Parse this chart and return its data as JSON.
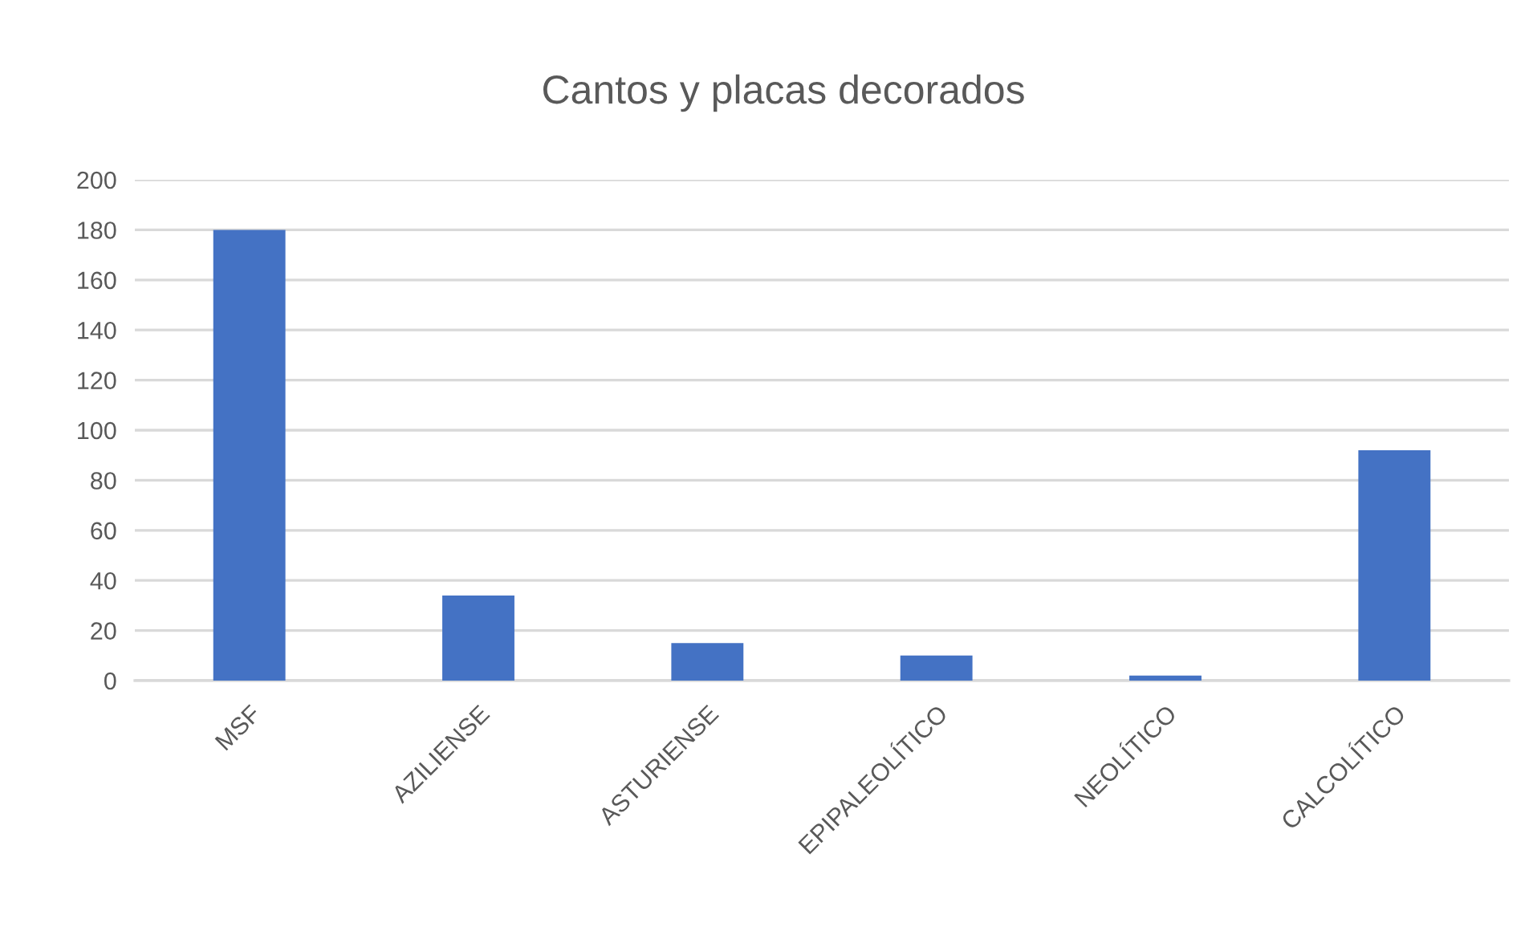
{
  "chart_data": {
    "type": "bar",
    "title": "Cantos y placas decorados",
    "categories": [
      "MSF",
      "AZILIENSE",
      "ASTURIENSE",
      "EPIPALEOLÍTICO",
      "NEOLÍTICO",
      "CALCOLÍTICO"
    ],
    "values": [
      180,
      34,
      15,
      10,
      2,
      92
    ],
    "color": "#4472c4",
    "ylim": [
      0,
      200
    ],
    "yticks": [
      0,
      20,
      40,
      60,
      80,
      100,
      120,
      140,
      160,
      180,
      200
    ],
    "grid": "y",
    "legend": false
  }
}
